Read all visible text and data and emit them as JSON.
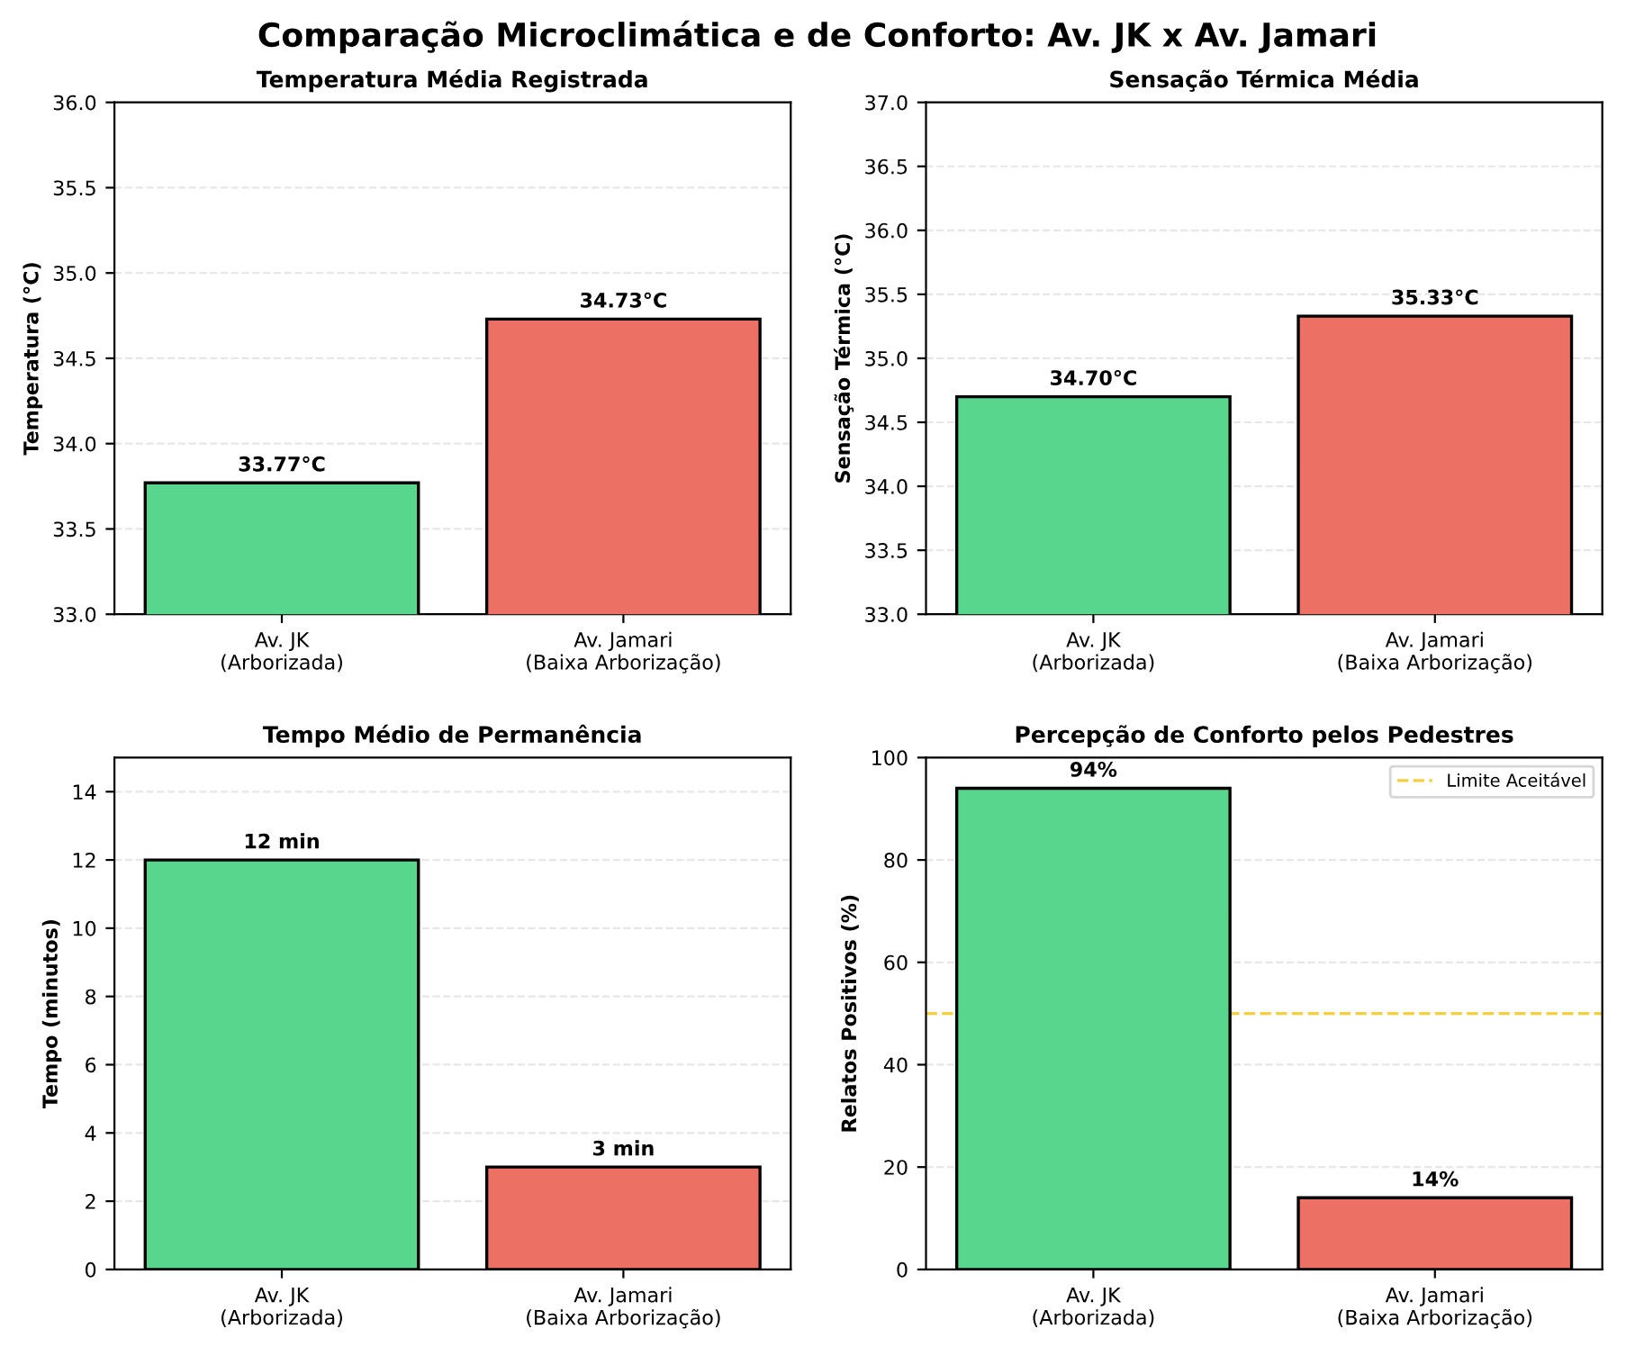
{
  "chart_data": [
    {
      "type": "bar",
      "title": "Temperatura Média Registrada",
      "annotations": [
        "Comparação Microclimática e de Conforto: Av. JK x Av. Jamari"
      ],
      "ylabel": "Temperatura (°C)",
      "categories": [
        "Av. JK\n(Arborizada)",
        "Av. Jamari\n(Baixa Arborização)"
      ],
      "values": [
        33.77,
        34.73
      ],
      "colors": [
        "#58d68d",
        "#ec7063"
      ],
      "value_labels": [
        "33.77°C",
        "34.73°C"
      ],
      "ylim": [
        33.0,
        36.0
      ],
      "yticks": [
        {
          "value": 33.0,
          "label": "33.0"
        },
        {
          "value": 33.5,
          "label": "33.5"
        },
        {
          "value": 34.0,
          "label": "34.0"
        },
        {
          "value": 34.5,
          "label": "34.5"
        },
        {
          "value": 35.0,
          "label": "35.0"
        },
        {
          "value": 35.5,
          "label": "35.5"
        },
        {
          "value": 36.0,
          "label": "36.0"
        }
      ],
      "grid": "y"
    },
    {
      "type": "bar",
      "title": "Sensação Térmica Média",
      "ylabel": "Sensação Térmica (°C)",
      "categories": [
        "Av. JK\n(Arborizada)",
        "Av. Jamari\n(Baixa Arborização)"
      ],
      "values": [
        34.7,
        35.33
      ],
      "colors": [
        "#58d68d",
        "#ec7063"
      ],
      "value_labels": [
        "34.70°C",
        "35.33°C"
      ],
      "ylim": [
        33.0,
        37.0
      ],
      "yticks": [
        {
          "value": 33.0,
          "label": "33.0"
        },
        {
          "value": 33.5,
          "label": "33.5"
        },
        {
          "value": 34.0,
          "label": "34.0"
        },
        {
          "value": 34.5,
          "label": "34.5"
        },
        {
          "value": 35.0,
          "label": "35.0"
        },
        {
          "value": 35.5,
          "label": "35.5"
        },
        {
          "value": 36.0,
          "label": "36.0"
        },
        {
          "value": 36.5,
          "label": "36.5"
        },
        {
          "value": 37.0,
          "label": "37.0"
        }
      ],
      "grid": "y"
    },
    {
      "type": "bar",
      "title": "Tempo Médio de Permanência",
      "ylabel": "Tempo (minutos)",
      "categories": [
        "Av. JK\n(Arborizada)",
        "Av. Jamari\n(Baixa Arborização)"
      ],
      "values": [
        12,
        3
      ],
      "colors": [
        "#58d68d",
        "#ec7063"
      ],
      "value_labels": [
        "12 min",
        "3 min"
      ],
      "ylim": [
        0,
        15
      ],
      "yticks": [
        0,
        2,
        4,
        6,
        8,
        10,
        12,
        14
      ],
      "grid": "y"
    },
    {
      "type": "bar",
      "title": "Percepção de Conforto pelos Pedestres",
      "ylabel": "Relatos Positivos (%)",
      "categories": [
        "Av. JK\n(Arborizada)",
        "Av. Jamari\n(Baixa Arborização)"
      ],
      "values": [
        94,
        14
      ],
      "colors": [
        "#58d68d",
        "#ec7063"
      ],
      "value_labels": [
        "94%",
        "14%"
      ],
      "ylim": [
        0,
        100
      ],
      "yticks": [
        0,
        20,
        40,
        60,
        80,
        100
      ],
      "grid": "y",
      "ref_lines": [
        {
          "axis": "y",
          "value": 50,
          "label": "Limite Aceitável",
          "color": "#f4d03f",
          "line_style": "dashed"
        }
      ],
      "legend": "top right"
    }
  ]
}
